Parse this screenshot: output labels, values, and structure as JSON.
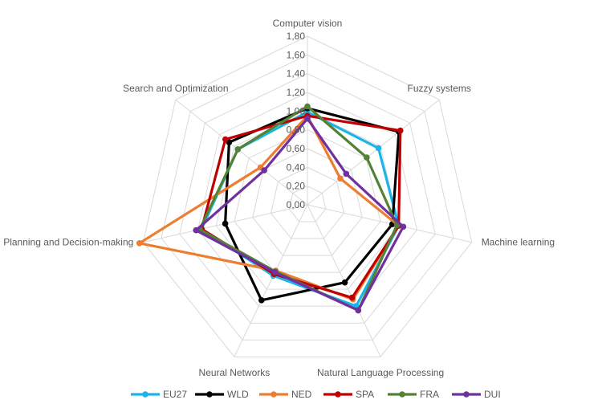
{
  "chart_data": {
    "type": "radar",
    "categories": [
      "Computer vision",
      "Fuzzy systems",
      "Machine learning",
      "Natural Language Processing",
      "Neural Networks",
      "Planning and Decision-making",
      "Search and Optimization"
    ],
    "rlim": [
      0,
      1.8
    ],
    "ticks": [
      "0,00",
      "0,20",
      "0,40",
      "0,60",
      "0,80",
      "1,00",
      "1,20",
      "1,40",
      "1,60",
      "1,80"
    ],
    "grid": true,
    "legend_position": "bottom",
    "series": [
      {
        "name": "EU27",
        "color": "#1ab4e8",
        "values": [
          0.99,
          0.97,
          1.0,
          1.2,
          0.84,
          1.16,
          0.95
        ]
      },
      {
        "name": "WLD",
        "color": "#000000",
        "values": [
          1.03,
          1.25,
          0.93,
          0.92,
          1.13,
          0.9,
          1.07
        ]
      },
      {
        "name": "NED",
        "color": "#ed7d31",
        "values": [
          0.95,
          0.45,
          1.0,
          1.12,
          0.78,
          1.84,
          0.64
        ]
      },
      {
        "name": "SPA",
        "color": "#c00000",
        "values": [
          0.95,
          1.27,
          1.0,
          1.1,
          0.82,
          1.16,
          1.12
        ]
      },
      {
        "name": "FRA",
        "color": "#548235",
        "values": [
          1.05,
          0.81,
          0.98,
          1.25,
          0.79,
          1.18,
          0.95
        ]
      },
      {
        "name": "DUI",
        "color": "#7030a0",
        "values": [
          0.92,
          0.53,
          1.05,
          1.25,
          0.8,
          1.22,
          0.59
        ]
      }
    ]
  }
}
